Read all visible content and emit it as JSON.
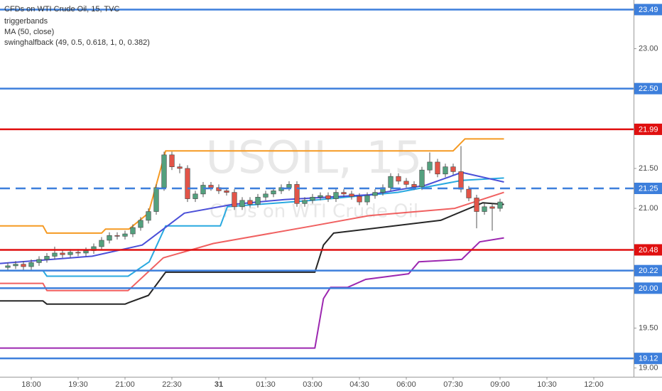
{
  "chart_data": {
    "type": "candlestick",
    "title": "CFDs on WTI Crude Oil, 15, TVC",
    "indicators": [
      "triggerbands",
      "MA (50, close)",
      "swinghalfback (49, 0.5, 0.618, 1, 0, 0.382)"
    ],
    "watermark": {
      "symbol": "USOIL, 15",
      "description": "CFDs on WTI Crude Oil"
    },
    "xlim": [
      -4,
      77.09
    ],
    "ylim": [
      18.89,
      23.61
    ],
    "xticks": [
      {
        "value": 0,
        "label": "18:00"
      },
      {
        "value": 6,
        "label": "19:30"
      },
      {
        "value": 12,
        "label": "21:00"
      },
      {
        "value": 18,
        "label": "22:30"
      },
      {
        "value": 24,
        "label": "31"
      },
      {
        "value": 30,
        "label": "01:30"
      },
      {
        "value": 36,
        "label": "03:00"
      },
      {
        "value": 42,
        "label": "04:30"
      },
      {
        "value": 48,
        "label": "06:00"
      },
      {
        "value": 54,
        "label": "07:30"
      },
      {
        "value": 60,
        "label": "09:00"
      },
      {
        "value": 66,
        "label": "10:30"
      },
      {
        "value": 72,
        "label": "12:00"
      }
    ],
    "yticks": [
      {
        "value": 23,
        "label": "23.00"
      },
      {
        "value": 21.5,
        "label": "21.50"
      },
      {
        "value": 21,
        "label": "21.00"
      },
      {
        "value": 19.5,
        "label": "19.50"
      },
      {
        "value": 19,
        "label": "19.00"
      }
    ],
    "up_color": "#53a07e",
    "down_color": "#e25448",
    "candles": {
      "x": [
        -3,
        -2,
        -1,
        0,
        1,
        2,
        3,
        4,
        5,
        6,
        7,
        8,
        9,
        10,
        11,
        12,
        13,
        14,
        15,
        16,
        17,
        18,
        19,
        20,
        21,
        22,
        23,
        24,
        25,
        26,
        27,
        28,
        29,
        30,
        31,
        32,
        33,
        34,
        35,
        36,
        37,
        38,
        39,
        40,
        41,
        42,
        43,
        44,
        45,
        46,
        47,
        48,
        49,
        50,
        51,
        52,
        53,
        54,
        55,
        56,
        57,
        58,
        59,
        60
      ],
      "open": [
        20.26,
        20.28,
        20.3,
        20.27,
        20.32,
        20.36,
        20.4,
        20.44,
        20.42,
        20.45,
        20.44,
        20.47,
        20.52,
        20.6,
        20.66,
        20.65,
        20.68,
        20.76,
        20.85,
        20.96,
        21.26,
        21.67,
        21.52,
        21.5,
        21.12,
        21.18,
        21.29,
        21.26,
        21.22,
        21.2,
        21.02,
        21.1,
        21.05,
        21.14,
        21.18,
        21.22,
        21.26,
        21.3,
        21.06,
        21.1,
        21.14,
        21.16,
        21.12,
        21.2,
        21.18,
        21.15,
        21.08,
        21.16,
        21.2,
        21.26,
        21.4,
        21.34,
        21.3,
        21.27,
        21.48,
        21.58,
        21.43,
        21.52,
        21.46,
        21.24,
        21.13,
        20.96,
        21.02,
        21.0
      ],
      "high": [
        20.32,
        20.34,
        20.34,
        20.36,
        20.4,
        20.44,
        20.52,
        20.48,
        20.49,
        20.49,
        20.51,
        20.56,
        20.64,
        20.7,
        20.7,
        20.72,
        20.8,
        20.89,
        21.0,
        21.3,
        21.71,
        21.71,
        21.56,
        21.54,
        21.22,
        21.33,
        21.33,
        21.3,
        21.26,
        21.24,
        21.14,
        21.14,
        21.18,
        21.22,
        21.26,
        21.3,
        21.34,
        21.34,
        21.14,
        21.18,
        21.2,
        21.2,
        21.24,
        21.24,
        21.22,
        21.19,
        21.2,
        21.24,
        21.3,
        21.44,
        21.44,
        21.38,
        21.34,
        21.52,
        21.7,
        21.62,
        21.56,
        21.56,
        21.78,
        21.28,
        21.17,
        21.06,
        21.06,
        21.12
      ],
      "low": [
        20.22,
        20.24,
        20.23,
        20.23,
        20.28,
        20.32,
        20.36,
        20.38,
        20.38,
        20.4,
        20.4,
        20.43,
        20.48,
        20.56,
        20.61,
        20.61,
        20.64,
        20.72,
        20.81,
        20.92,
        21.22,
        21.48,
        21.44,
        21.08,
        21.08,
        21.14,
        21.22,
        21.18,
        21.16,
        20.98,
        20.98,
        21.01,
        21.01,
        21.1,
        21.14,
        21.18,
        21.22,
        21.02,
        21.02,
        21.06,
        21.1,
        21.08,
        21.08,
        21.14,
        21.11,
        21.04,
        21.04,
        21.12,
        21.16,
        21.22,
        21.3,
        21.26,
        21.23,
        21.23,
        21.44,
        21.39,
        21.39,
        21.42,
        21.2,
        21.09,
        20.75,
        20.92,
        20.72,
        20.96
      ],
      "close": [
        20.28,
        20.3,
        20.27,
        20.32,
        20.36,
        20.4,
        20.44,
        20.42,
        20.45,
        20.44,
        20.47,
        20.52,
        20.6,
        20.66,
        20.65,
        20.68,
        20.76,
        20.85,
        20.96,
        21.26,
        21.67,
        21.52,
        21.5,
        21.12,
        21.18,
        21.29,
        21.26,
        21.22,
        21.2,
        21.02,
        21.1,
        21.05,
        21.14,
        21.18,
        21.22,
        21.26,
        21.3,
        21.06,
        21.1,
        21.14,
        21.16,
        21.12,
        21.2,
        21.18,
        21.15,
        21.08,
        21.16,
        21.2,
        21.26,
        21.4,
        21.34,
        21.3,
        21.27,
        21.48,
        21.58,
        21.43,
        21.52,
        21.46,
        21.24,
        21.13,
        20.96,
        21.02,
        21.0,
        21.08
      ]
    },
    "series": [
      {
        "color": "#f59a23",
        "x": [
          -4,
          1.5,
          2,
          9,
          9.5,
          12.5,
          15,
          17.2,
          54,
          55.5,
          60.5
        ],
        "values": [
          20.78,
          20.78,
          20.69,
          20.69,
          20.74,
          20.74,
          20.94,
          21.72,
          21.72,
          21.87,
          21.87
        ]
      },
      {
        "color": "#29a9e0",
        "x": [
          -4,
          1.5,
          2,
          12.4,
          15.1,
          17.2,
          24.2,
          25.1,
          36,
          46.9,
          55.1,
          60.5
        ],
        "values": [
          20.22,
          20.22,
          20.15,
          20.15,
          20.33,
          20.78,
          20.78,
          21.02,
          21.1,
          21.2,
          21.35,
          21.38
        ]
      },
      {
        "color": "#f06060",
        "x": [
          -4,
          1.5,
          2,
          12.4,
          16.9,
          23.3,
          36,
          43.3,
          54.2,
          60.5
        ],
        "values": [
          20.06,
          20.06,
          19.97,
          19.97,
          20.38,
          20.56,
          20.78,
          20.91,
          21.0,
          21.2
        ]
      },
      {
        "color": "#4a4fd8",
        "x": [
          -4,
          7.8,
          14.2,
          19.6,
          25.8,
          32.4,
          43.3,
          50.5,
          55.1,
          60.5
        ],
        "values": [
          20.31,
          20.4,
          20.54,
          20.94,
          21.05,
          21.11,
          21.17,
          21.29,
          21.45,
          21.33
        ]
      },
      {
        "color": "#262626",
        "x": [
          -4,
          1.5,
          2,
          12,
          12.5,
          15,
          17.2,
          36.3,
          37.4,
          38.7,
          52.4,
          57.8,
          60.5
        ],
        "values": [
          19.84,
          19.84,
          19.8,
          19.8,
          19.82,
          19.91,
          20.2,
          20.2,
          20.54,
          20.69,
          20.85,
          21.07,
          21.05
        ]
      },
      {
        "color": "#9c27b0",
        "x": [
          -4,
          36.3,
          37.4,
          38.3,
          40.5,
          42.8,
          48.3,
          49.6,
          55.1,
          57.4,
          60.5
        ],
        "values": [
          19.25,
          19.25,
          19.87,
          20.01,
          20.01,
          20.11,
          20.18,
          20.33,
          20.36,
          20.58,
          20.63
        ]
      }
    ],
    "levels": [
      {
        "value": 23.49,
        "color": "#3d7fdc"
      },
      {
        "value": 22.5,
        "label": "22.50",
        "color": "#3d7fdc"
      },
      {
        "value": 21.99,
        "color": "#e01010"
      },
      {
        "value": 21.25,
        "color": "#3d7fdc",
        "dashed": true
      },
      {
        "value": 20.48,
        "color": "#e01010"
      },
      {
        "value": 20.22,
        "color": "#3d7fdc"
      },
      {
        "value": 20,
        "label": "20.00",
        "color": "#3d7fdc"
      },
      {
        "value": 19.12,
        "color": "#3d7fdc"
      }
    ]
  }
}
